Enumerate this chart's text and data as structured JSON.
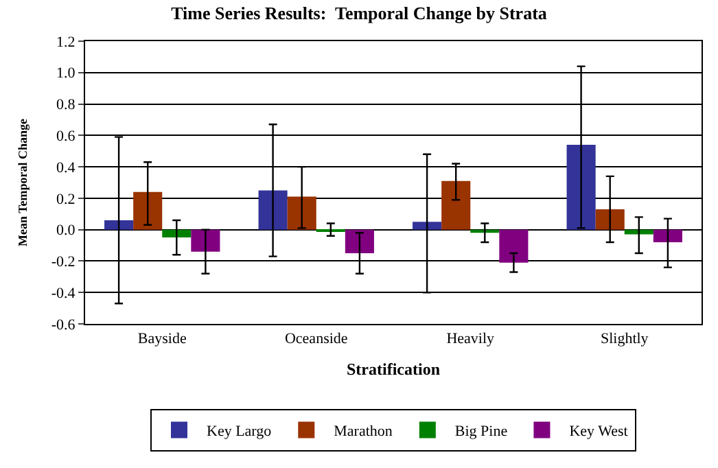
{
  "chart_data": {
    "type": "bar",
    "title": "Time Series Results:  Temporal Change by Strata",
    "xlabel": "Stratification",
    "ylabel": "Mean Temporal Change",
    "categories": [
      "Bayside",
      "Oceanside",
      "Heavily",
      "Slightly"
    ],
    "series": [
      {
        "name": "Key Largo",
        "color": "#333399",
        "values": [
          0.06,
          0.25,
          0.05,
          0.54
        ],
        "errors": [
          [
            -0.47,
            0.59
          ],
          [
            -0.17,
            0.67
          ],
          [
            -0.4,
            0.48
          ],
          [
            0.01,
            1.04
          ]
        ]
      },
      {
        "name": "Marathon",
        "color": "#993300",
        "values": [
          0.24,
          0.21,
          0.31,
          0.13
        ],
        "errors": [
          [
            0.03,
            0.43
          ],
          [
            0.01,
            0.4
          ],
          [
            0.19,
            0.42
          ],
          [
            -0.08,
            0.34
          ]
        ]
      },
      {
        "name": "Big Pine",
        "color": "#008000",
        "values": [
          -0.05,
          -0.01,
          -0.02,
          -0.03
        ],
        "errors": [
          [
            -0.16,
            0.06
          ],
          [
            -0.04,
            0.04
          ],
          [
            -0.08,
            0.04
          ],
          [
            -0.15,
            0.08
          ]
        ]
      },
      {
        "name": "Key West",
        "color": "#800080",
        "values": [
          -0.14,
          -0.15,
          -0.21,
          -0.08
        ],
        "errors": [
          [
            -0.28,
            0.0
          ],
          [
            -0.28,
            -0.02
          ],
          [
            -0.27,
            -0.15
          ],
          [
            -0.24,
            0.07
          ]
        ]
      }
    ],
    "ylim": [
      -0.6,
      1.2
    ],
    "yticks": [
      {
        "value": -0.6,
        "label": "-0.6"
      },
      {
        "value": -0.4,
        "label": "-0.4"
      },
      {
        "value": -0.2,
        "label": "-0.2"
      },
      {
        "value": 0,
        "label": "0.0"
      },
      {
        "value": 0.2,
        "label": "0.2"
      },
      {
        "value": 0.4,
        "label": "0.4"
      },
      {
        "value": 0.6,
        "label": "0.6"
      },
      {
        "value": 0.8,
        "label": "0.8"
      },
      {
        "value": 1.0,
        "label": "1.0"
      },
      {
        "value": 1.2,
        "label": "1.2"
      }
    ],
    "grid": "y",
    "legend": "bottom"
  }
}
